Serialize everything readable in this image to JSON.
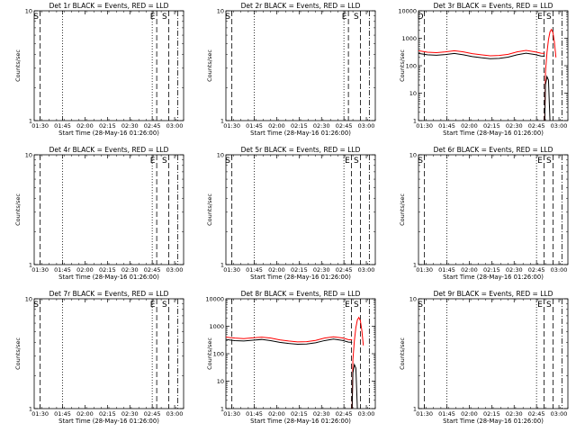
{
  "colors": {
    "events": "#000000",
    "lld": "#ff0000",
    "background": "#ffffff",
    "axis": "#000000"
  },
  "chart_data": [
    {
      "type": "line",
      "detector": "1r",
      "title": "Det 1r BLACK = Events, RED = LLD",
      "xlabel": "Start Time (28-May-16 01:26:00)",
      "ylabel": "Counts/sec",
      "scale": "log",
      "ylim": [
        1,
        10
      ],
      "y_tick_labels": [
        "1",
        "10"
      ],
      "x_tick_labels": [
        "01:30",
        "01:45",
        "02:00",
        "02:15",
        "02:30",
        "02:45",
        "03:00"
      ],
      "x_ticks_min": [
        4,
        19,
        34,
        49,
        64,
        79,
        94
      ],
      "xlim_min": [
        0,
        100
      ],
      "markers": [
        {
          "min": 4,
          "style": "dashed",
          "label": "S"
        },
        {
          "min": 19,
          "style": "dotted",
          "label": ""
        },
        {
          "min": 79,
          "style": "dotted",
          "label": ""
        },
        {
          "min": 82,
          "style": "dashed",
          "label": "E"
        },
        {
          "min": 90,
          "style": "dashed",
          "label": "S"
        },
        {
          "min": 96,
          "style": "dashdot",
          "label": ""
        }
      ],
      "marker_labels_top": [
        "S"
      ],
      "series": []
    },
    {
      "type": "line",
      "detector": "2r",
      "title": "Det 2r BLACK = Events, RED = LLD",
      "xlabel": "Start Time (28-May-16 01:26:00)",
      "ylabel": "Counts/sec",
      "scale": "log",
      "ylim": [
        1,
        10
      ],
      "y_tick_labels": [
        "1",
        "10"
      ],
      "x_tick_labels": [
        "01:30",
        "01:45",
        "02:00",
        "02:15",
        "02:30",
        "02:45",
        "03:00"
      ],
      "x_ticks_min": [
        4,
        19,
        34,
        49,
        64,
        79,
        94
      ],
      "xlim_min": [
        0,
        100
      ],
      "markers": [
        {
          "min": 4,
          "style": "dashed",
          "label": "S"
        },
        {
          "min": 19,
          "style": "dotted",
          "label": ""
        },
        {
          "min": 79,
          "style": "dotted",
          "label": ""
        },
        {
          "min": 82,
          "style": "dashed",
          "label": "E"
        },
        {
          "min": 90,
          "style": "dashed",
          "label": "S"
        },
        {
          "min": 96,
          "style": "dashdot",
          "label": ""
        }
      ],
      "series": []
    },
    {
      "type": "line",
      "detector": "3r",
      "title": "Det 3r BLACK = Events, RED = LLD",
      "xlabel": "Start Time (28-May-16 01:26:00)",
      "ylabel": "Counts/sec",
      "scale": "log",
      "ylim": [
        1,
        10000
      ],
      "y_tick_labels": [
        "1",
        "10",
        "100",
        "1000",
        "10000"
      ],
      "x_tick_labels": [
        "01:30",
        "01:45",
        "02:00",
        "02:15",
        "02:30",
        "02:45",
        "03:00"
      ],
      "x_ticks_min": [
        4,
        19,
        34,
        49,
        64,
        79,
        94
      ],
      "xlim_min": [
        0,
        100
      ],
      "markers": [
        {
          "min": 4,
          "style": "dashed",
          "label": "D"
        },
        {
          "min": 19,
          "style": "dotted",
          "label": ""
        },
        {
          "min": 79,
          "style": "dotted",
          "label": ""
        },
        {
          "min": 84,
          "style": "dashed",
          "label": "E"
        },
        {
          "min": 90,
          "style": "dashed",
          "label": "S"
        },
        {
          "min": 96,
          "style": "dashdot",
          "label": ""
        }
      ],
      "series": [
        {
          "name": "Events",
          "color": "#000000",
          "x": [
            0,
            6,
            12,
            18,
            24,
            30,
            36,
            42,
            48,
            54,
            60,
            66,
            72,
            78,
            82,
            84.5
          ],
          "y": [
            280,
            250,
            240,
            255,
            280,
            250,
            215,
            195,
            180,
            185,
            205,
            250,
            285,
            255,
            225,
            220
          ]
        },
        {
          "name": "LLD",
          "color": "#ff0000",
          "x": [
            0,
            6,
            12,
            18,
            24,
            30,
            36,
            42,
            48,
            54,
            60,
            66,
            72,
            78,
            82,
            84.5
          ],
          "y": [
            350,
            310,
            300,
            320,
            350,
            320,
            275,
            250,
            230,
            235,
            260,
            320,
            360,
            320,
            285,
            280
          ]
        },
        {
          "name": "LLD",
          "color": "#ff0000",
          "x": [
            84.5,
            85,
            86,
            87,
            88,
            89,
            90,
            91,
            92
          ],
          "y": [
            1,
            60,
            300,
            900,
            1700,
            2100,
            1600,
            700,
            200
          ]
        },
        {
          "name": "Events",
          "color": "#000000",
          "x": [
            84.5,
            85,
            86,
            87,
            88
          ],
          "y": [
            1,
            20,
            40,
            30,
            1
          ]
        }
      ]
    },
    {
      "type": "line",
      "detector": "4r",
      "title": "Det 4r BLACK = Events, RED = LLD",
      "xlabel": "Start Time (28-May-16 01:26:00)",
      "ylabel": "Counts/sec",
      "scale": "log",
      "ylim": [
        1,
        10
      ],
      "y_tick_labels": [
        "1",
        "10"
      ],
      "x_tick_labels": [
        "01:30",
        "01:45",
        "02:00",
        "02:15",
        "02:30",
        "02:45",
        "03:00"
      ],
      "x_ticks_min": [
        4,
        19,
        34,
        49,
        64,
        79,
        94
      ],
      "xlim_min": [
        0,
        100
      ],
      "markers": [
        {
          "min": 4,
          "style": "dashed",
          "label": ""
        },
        {
          "min": 19,
          "style": "dotted",
          "label": ""
        },
        {
          "min": 79,
          "style": "dotted",
          "label": ""
        },
        {
          "min": 82,
          "style": "dashed",
          "label": "E"
        },
        {
          "min": 90,
          "style": "dashed",
          "label": "S"
        },
        {
          "min": 96,
          "style": "dashdot",
          "label": ""
        }
      ],
      "series": []
    },
    {
      "type": "line",
      "detector": "5r",
      "title": "Det 5r BLACK = Events, RED = LLD",
      "xlabel": "Start Time (28-May-16 01:26:00)",
      "ylabel": "Counts/sec",
      "scale": "log",
      "ylim": [
        1,
        10
      ],
      "y_tick_labels": [
        "1",
        "10"
      ],
      "x_tick_labels": [
        "01:30",
        "01:45",
        "02:00",
        "02:15",
        "02:30",
        "02:45",
        "03:00"
      ],
      "x_ticks_min": [
        4,
        19,
        34,
        49,
        64,
        79,
        94
      ],
      "xlim_min": [
        0,
        100
      ],
      "markers": [
        {
          "min": 4,
          "style": "dashed",
          "label": "S"
        },
        {
          "min": 19,
          "style": "dotted",
          "label": ""
        },
        {
          "min": 79,
          "style": "dotted",
          "label": ""
        },
        {
          "min": 84,
          "style": "dashed",
          "label": "E"
        },
        {
          "min": 90,
          "style": "dashed",
          "label": "S"
        },
        {
          "min": 96,
          "style": "dashdot",
          "label": ""
        }
      ],
      "series": []
    },
    {
      "type": "line",
      "detector": "6r",
      "title": "Det 6r BLACK = Events, RED = LLD",
      "xlabel": "Start Time (28-May-16 01:26:00)",
      "ylabel": "Counts/sec",
      "scale": "log",
      "ylim": [
        1,
        10
      ],
      "y_tick_labels": [
        "1",
        "10"
      ],
      "x_tick_labels": [
        "01:30",
        "01:45",
        "02:00",
        "02:15",
        "02:30",
        "02:45",
        "03:00"
      ],
      "x_ticks_min": [
        4,
        19,
        34,
        49,
        64,
        79,
        94
      ],
      "xlim_min": [
        0,
        100
      ],
      "markers": [
        {
          "min": 4,
          "style": "dashed",
          "label": "S"
        },
        {
          "min": 19,
          "style": "dotted",
          "label": ""
        },
        {
          "min": 79,
          "style": "dotted",
          "label": ""
        },
        {
          "min": 84,
          "style": "dashed",
          "label": "E"
        },
        {
          "min": 90,
          "style": "dashed",
          "label": "S"
        },
        {
          "min": 96,
          "style": "dashdot",
          "label": ""
        }
      ],
      "series": []
    },
    {
      "type": "line",
      "detector": "7r",
      "title": "Det 7r BLACK = Events, RED = LLD",
      "xlabel": "Start Time (28-May-16 01:26:00)",
      "ylabel": "Counts/sec",
      "scale": "log",
      "ylim": [
        1,
        10
      ],
      "y_tick_labels": [
        "1",
        "10"
      ],
      "x_tick_labels": [
        "01:30",
        "01:45",
        "02:00",
        "02:15",
        "02:30",
        "02:45",
        "03:00"
      ],
      "x_ticks_min": [
        4,
        19,
        34,
        49,
        64,
        79,
        94
      ],
      "xlim_min": [
        0,
        100
      ],
      "markers": [
        {
          "min": 4,
          "style": "dashed",
          "label": "S"
        },
        {
          "min": 19,
          "style": "dotted",
          "label": ""
        },
        {
          "min": 79,
          "style": "dotted",
          "label": ""
        },
        {
          "min": 82,
          "style": "dashed",
          "label": "E"
        },
        {
          "min": 90,
          "style": "dashed",
          "label": "S"
        },
        {
          "min": 96,
          "style": "dashdot",
          "label": ""
        }
      ],
      "series": []
    },
    {
      "type": "line",
      "detector": "8r",
      "title": "Det 8r BLACK = Events, RED = LLD",
      "xlabel": "Start Time (28-May-16 01:26:00)",
      "ylabel": "Counts/sec",
      "scale": "log",
      "ylim": [
        1,
        10000
      ],
      "y_tick_labels": [
        "1",
        "10",
        "100",
        "1000",
        "10000"
      ],
      "x_tick_labels": [
        "01:30",
        "01:45",
        "02:00",
        "02:15",
        "02:30",
        "02:45",
        "03:00"
      ],
      "x_ticks_min": [
        4,
        19,
        34,
        49,
        64,
        79,
        94
      ],
      "xlim_min": [
        0,
        100
      ],
      "markers": [
        {
          "min": 4,
          "style": "dashed",
          "label": ""
        },
        {
          "min": 19,
          "style": "dotted",
          "label": ""
        },
        {
          "min": 79,
          "style": "dotted",
          "label": ""
        },
        {
          "min": 84,
          "style": "dashed",
          "label": "E"
        },
        {
          "min": 90,
          "style": "dashed",
          "label": "S"
        },
        {
          "min": 96,
          "style": "dashdot",
          "label": ""
        }
      ],
      "series": [
        {
          "name": "Events",
          "color": "#000000",
          "x": [
            0,
            6,
            12,
            18,
            24,
            30,
            36,
            42,
            48,
            54,
            60,
            66,
            72,
            78,
            82,
            84.5
          ],
          "y": [
            330,
            300,
            290,
            310,
            330,
            300,
            260,
            235,
            220,
            225,
            250,
            300,
            340,
            305,
            265,
            260
          ]
        },
        {
          "name": "LLD",
          "color": "#ff0000",
          "x": [
            0,
            6,
            12,
            18,
            24,
            30,
            36,
            42,
            48,
            54,
            60,
            66,
            72,
            78,
            82,
            84.5
          ],
          "y": [
            400,
            370,
            355,
            380,
            400,
            370,
            320,
            290,
            270,
            275,
            305,
            370,
            410,
            375,
            325,
            320
          ]
        },
        {
          "name": "LLD",
          "color": "#ff0000",
          "x": [
            84.5,
            85,
            86,
            87,
            88,
            89,
            90,
            91,
            92
          ],
          "y": [
            1,
            60,
            300,
            900,
            1700,
            2100,
            1600,
            700,
            200
          ]
        },
        {
          "name": "Events",
          "color": "#000000",
          "x": [
            84.5,
            85,
            86,
            87,
            88
          ],
          "y": [
            1,
            20,
            40,
            30,
            1
          ]
        }
      ]
    },
    {
      "type": "line",
      "detector": "9r",
      "title": "Det 9r BLACK = Events, RED = LLD",
      "xlabel": "Start Time (28-May-16 01:26:00)",
      "ylabel": "Counts/sec",
      "scale": "log",
      "ylim": [
        1,
        10
      ],
      "y_tick_labels": [
        "1",
        "10"
      ],
      "x_tick_labels": [
        "01:30",
        "01:45",
        "02:00",
        "02:15",
        "02:30",
        "02:45",
        "03:00"
      ],
      "x_ticks_min": [
        4,
        19,
        34,
        49,
        64,
        79,
        94
      ],
      "xlim_min": [
        0,
        100
      ],
      "markers": [
        {
          "min": 4,
          "style": "dashed",
          "label": "S"
        },
        {
          "min": 19,
          "style": "dotted",
          "label": ""
        },
        {
          "min": 79,
          "style": "dotted",
          "label": ""
        },
        {
          "min": 84,
          "style": "dashed",
          "label": "E"
        },
        {
          "min": 90,
          "style": "dashed",
          "label": "S"
        },
        {
          "min": 96,
          "style": "dashdot",
          "label": ""
        }
      ],
      "series": []
    }
  ]
}
